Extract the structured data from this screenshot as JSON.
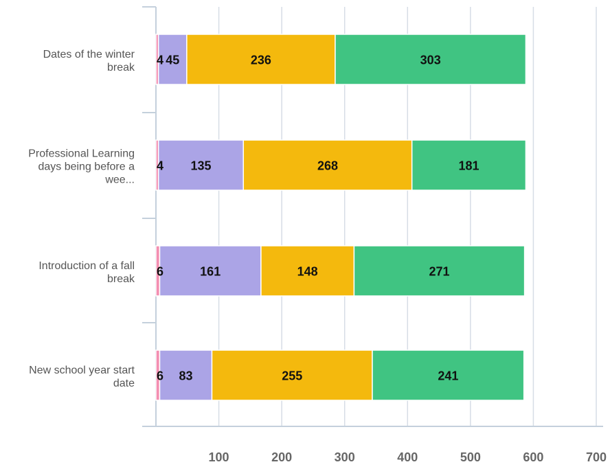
{
  "chart_data": {
    "type": "bar",
    "orientation": "horizontal",
    "stacked": true,
    "categories": [
      [
        "Dates of the winter",
        "break"
      ],
      [
        "Professional Learning",
        "days being before a",
        "wee..."
      ],
      [
        "Introduction of a fall",
        "break"
      ],
      [
        "New school year start",
        "date"
      ]
    ],
    "series": [
      {
        "values": [
          4,
          4,
          6,
          6
        ],
        "color": "#f48fb1",
        "show_labels": true
      },
      {
        "values": [
          45,
          135,
          161,
          83
        ],
        "color": "#aba4e6",
        "show_labels": true
      },
      {
        "values": [
          236,
          268,
          148,
          255
        ],
        "color": "#f4b90d",
        "show_labels": true
      },
      {
        "values": [
          303,
          181,
          271,
          241
        ],
        "color": "#40c482",
        "show_labels": true
      }
    ],
    "xlim": [
      0,
      700
    ],
    "xticks": [
      100,
      200,
      300,
      400,
      500,
      600,
      700
    ],
    "grid": true,
    "legend": "none",
    "gridline_color": "#d6dde6",
    "axis_color": "#c4d0dc"
  }
}
